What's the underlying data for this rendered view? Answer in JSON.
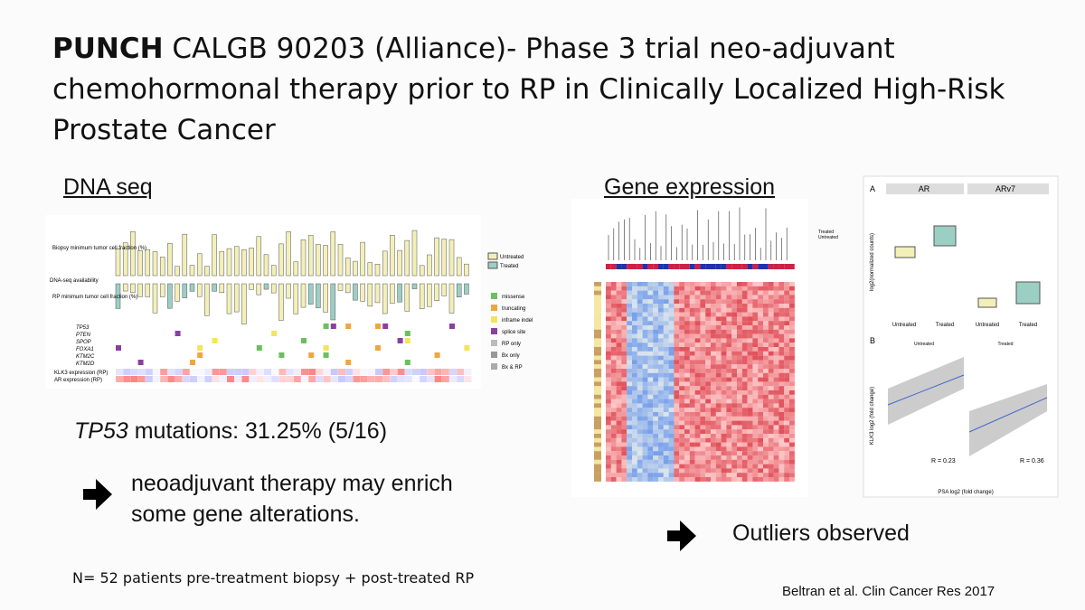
{
  "header": {
    "title_bold": "PUNCH",
    "title_lines": [
      " CALGB 90203 (Alliance)- Phase 3 trial neo-adjuvant",
      "chemohormonal therapy prior to RP in Clinically Localized High-Risk",
      "Prostate Cancer"
    ]
  },
  "dna_seq": {
    "heading": "DNA seq",
    "figure": {
      "biopsy_label": "Biopsy minimum tumor cell fraction (%)",
      "availability": "DNA-seq availability",
      "rp_label": "RP minimum tumor cell fraction (%)",
      "legend_fraction": [
        "Untreated",
        "Treated"
      ],
      "legend_mutation": [
        "missense",
        "truncating",
        "inframe indel",
        "splice site",
        "RP only",
        "Bx only",
        "Bx & RP"
      ],
      "genes": [
        "TP53",
        "PTEN",
        "SPOP",
        "FOXA1",
        "KTM2C",
        "KTM2D"
      ],
      "expression_rows": [
        "KLK3 expression (RP)",
        "AR expression (RP)"
      ]
    }
  },
  "tp53": {
    "gene": "TP53",
    "text": " mutations: 31.25% (5/16)"
  },
  "conclusion": [
    "neoadjuvant therapy may enrich",
    "some gene alterations."
  ],
  "footnote": "N= 52 patients pre-treatment biopsy + post-treated RP",
  "gene_expression": {
    "heading": "Gene expression",
    "legend": [
      "Treated",
      "Untreated"
    ]
  },
  "box_panel": {
    "panel_a": "A",
    "facets": [
      "AR",
      "ARv7"
    ],
    "y_label": "log2(normalized counts)",
    "x_labels": [
      "Untreated",
      "Treated",
      "Untreated",
      "Treated"
    ],
    "panel_b": "B",
    "facets_b": [
      "Untreated",
      "Treated"
    ],
    "y_label_b": "KLK3 log2 (fold change)",
    "x_label_b": "PSA log2 (fold change)",
    "r_values": [
      "R = 0.23",
      "R = 0.36"
    ]
  },
  "outliers": "Outliers observed",
  "citation": "Beltran et al. Clin Cancer Res 2017"
}
